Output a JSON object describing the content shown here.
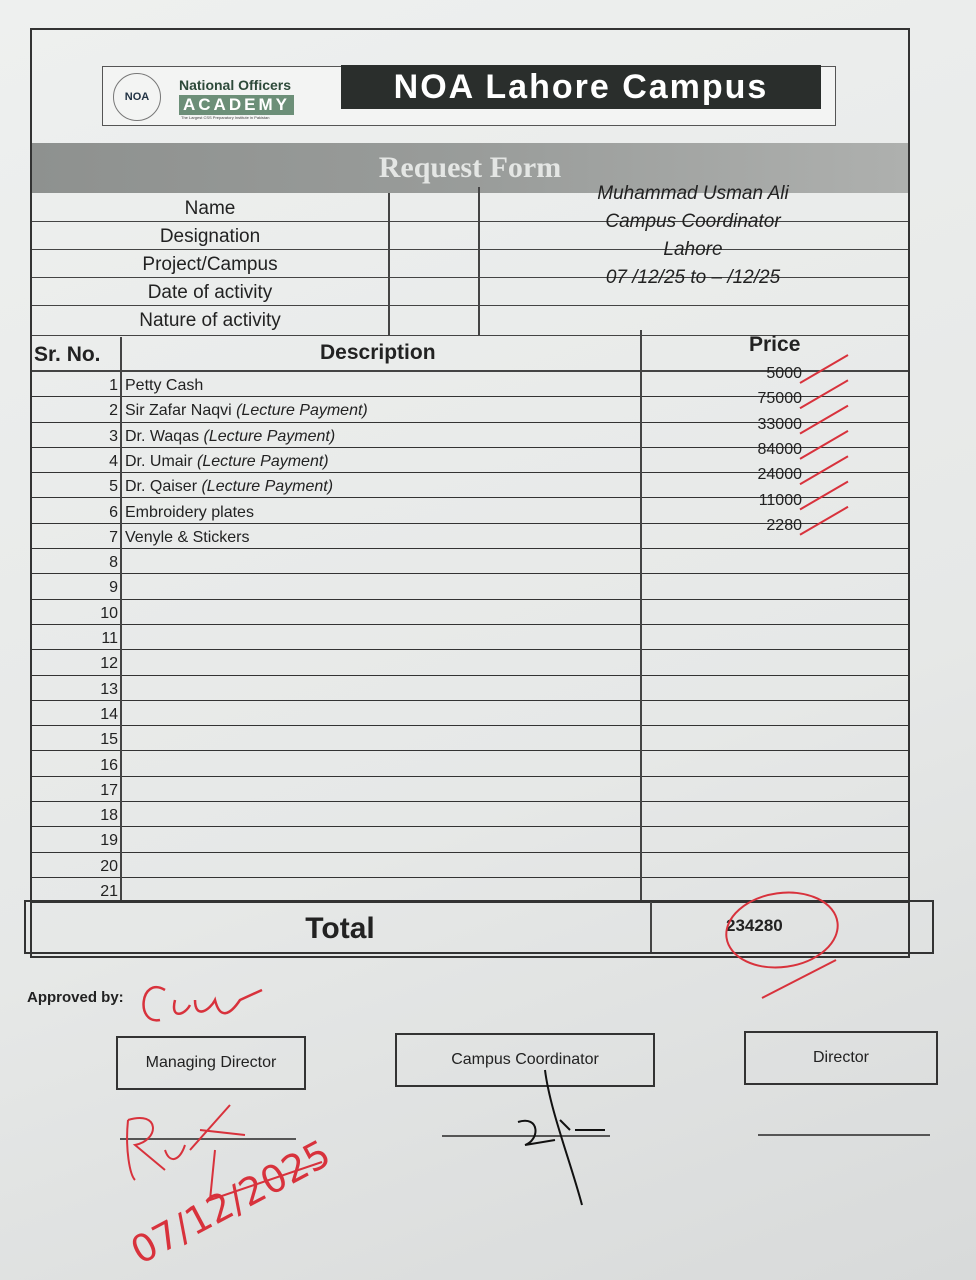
{
  "header": {
    "logo_seal_text": "NOA",
    "logo_name": "National Officers",
    "logo_academy": "ACADEMY",
    "logo_tagline": "The Largest CSS Preparatory Institute in Pakistan",
    "campus_title": "NOA Lahore Campus",
    "form_title": "Request Form"
  },
  "info": {
    "fields": [
      {
        "label": "Name",
        "value": "Muhammad Usman Ali"
      },
      {
        "label": "Designation",
        "value": "Campus Coordinator"
      },
      {
        "label": "Project/Campus",
        "value": "Lahore"
      },
      {
        "label": "Date of activity",
        "value": "07 /12/25 to  – /12/25"
      },
      {
        "label": "Nature of activity",
        "value": ""
      }
    ]
  },
  "table": {
    "headers": {
      "sr": "Sr. No.",
      "description": "Description",
      "price": "Price"
    },
    "rows": [
      {
        "sr": "1",
        "description": "Petty Cash",
        "note": "",
        "price": "5000"
      },
      {
        "sr": "2",
        "description": "Sir Zafar Naqvi ",
        "note": "(Lecture Payment)",
        "price": "75000"
      },
      {
        "sr": "3",
        "description": "Dr. Waqas ",
        "note": "(Lecture Payment)",
        "price": "33000"
      },
      {
        "sr": "4",
        "description": "Dr. Umair ",
        "note": "(Lecture Payment)",
        "price": "84000"
      },
      {
        "sr": "5",
        "description": "Dr. Qaiser ",
        "note": "(Lecture Payment)",
        "price": "24000"
      },
      {
        "sr": "6",
        "description": "Embroidery plates",
        "note": "",
        "price": "11000"
      },
      {
        "sr": "7",
        "description": "Venyle & Stickers",
        "note": "",
        "price": "2280"
      },
      {
        "sr": "8",
        "description": "",
        "note": "",
        "price": ""
      },
      {
        "sr": "9",
        "description": "",
        "note": "",
        "price": ""
      },
      {
        "sr": "10",
        "description": "",
        "note": "",
        "price": ""
      },
      {
        "sr": "11",
        "description": "",
        "note": "",
        "price": ""
      },
      {
        "sr": "12",
        "description": "",
        "note": "",
        "price": ""
      },
      {
        "sr": "13",
        "description": "",
        "note": "",
        "price": ""
      },
      {
        "sr": "14",
        "description": "",
        "note": "",
        "price": ""
      },
      {
        "sr": "15",
        "description": "",
        "note": "",
        "price": ""
      },
      {
        "sr": "16",
        "description": "",
        "note": "",
        "price": ""
      },
      {
        "sr": "17",
        "description": "",
        "note": "",
        "price": ""
      },
      {
        "sr": "18",
        "description": "",
        "note": "",
        "price": ""
      },
      {
        "sr": "19",
        "description": "",
        "note": "",
        "price": ""
      },
      {
        "sr": "20",
        "description": "",
        "note": "",
        "price": ""
      },
      {
        "sr": "21",
        "description": "",
        "note": "",
        "price": ""
      }
    ],
    "total_label": "Total",
    "total_value": "234280"
  },
  "approval": {
    "approved_by": "Approved by:",
    "boxes": [
      "Managing Director",
      "Campus Coordinator",
      "Director"
    ],
    "handwritten_date": "07/12/2025"
  },
  "colors": {
    "ink_red": "#d8323c",
    "banner": "#2a2e2c",
    "title_bar": "#999c9a"
  }
}
